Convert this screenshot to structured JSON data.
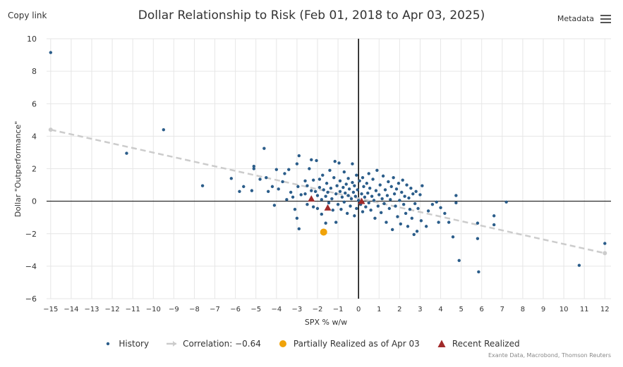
{
  "header": {
    "copy_link": "Copy link",
    "metadata": "Metadata",
    "menu_icon": "hamburger-menu-icon"
  },
  "source": "Exante Data, Macrobond, Thomson Reuters",
  "colors": {
    "history": "#2b5d8a",
    "correlation": "#cccccc",
    "partial": "#f0a30a",
    "recent": "#a12a2a",
    "grid": "#e6e6e6",
    "axis": "#000000"
  },
  "chart_data": {
    "type": "scatter",
    "title": "Dollar Relationship to Risk (Feb 01, 2018 to Apr 03, 2025)",
    "xlabel": "SPX % w/w",
    "ylabel": "Dollar \"Outperformance\"",
    "xlim": [
      -15.2,
      12.3
    ],
    "ylim": [
      -6,
      10
    ],
    "xticks": [
      -15,
      -14,
      -13,
      -12,
      -11,
      -10,
      -9,
      -8,
      -7,
      -6,
      -5,
      -4,
      -3,
      -2,
      -1,
      0,
      1,
      2,
      3,
      4,
      5,
      6,
      7,
      8,
      9,
      10,
      11,
      12
    ],
    "yticks": [
      -6,
      -4,
      -2,
      0,
      2,
      4,
      6,
      8,
      10
    ],
    "grid": true,
    "legend_position": "bottom-center",
    "series": [
      {
        "name": "History",
        "type": "scatter",
        "points": [
          [
            -15.0,
            9.15
          ],
          [
            -9.5,
            4.4
          ],
          [
            -11.3,
            2.95
          ],
          [
            -7.6,
            0.95
          ],
          [
            -6.2,
            1.4
          ],
          [
            -5.8,
            0.6
          ],
          [
            -5.6,
            0.9
          ],
          [
            -5.2,
            0.65
          ],
          [
            -5.1,
            2.0
          ],
          [
            -5.1,
            2.15
          ],
          [
            -4.8,
            1.35
          ],
          [
            -4.6,
            3.25
          ],
          [
            -4.5,
            1.45
          ],
          [
            -4.4,
            0.6
          ],
          [
            -4.2,
            0.9
          ],
          [
            -4.1,
            -0.25
          ],
          [
            -4.0,
            1.95
          ],
          [
            -3.9,
            0.75
          ],
          [
            -3.7,
            1.2
          ],
          [
            -3.6,
            1.7
          ],
          [
            -3.5,
            0.1
          ],
          [
            -3.4,
            1.95
          ],
          [
            -3.3,
            0.55
          ],
          [
            -3.2,
            0.25
          ],
          [
            -3.1,
            -0.5
          ],
          [
            -3.0,
            2.3
          ],
          [
            -3.0,
            -1.05
          ],
          [
            -2.95,
            0.9
          ],
          [
            -2.9,
            2.8
          ],
          [
            -2.9,
            -1.7
          ],
          [
            -2.8,
            0.4
          ],
          [
            -2.6,
            0.45
          ],
          [
            -2.6,
            1.25
          ],
          [
            -2.5,
            -0.2
          ],
          [
            -2.5,
            0.95
          ],
          [
            -2.4,
            2.0
          ],
          [
            -2.3,
            2.55
          ],
          [
            -2.3,
            0.65
          ],
          [
            -2.2,
            -0.35
          ],
          [
            -2.2,
            1.3
          ],
          [
            -2.1,
            0.6
          ],
          [
            -2.05,
            2.5
          ],
          [
            -2.0,
            -0.45
          ],
          [
            -2.0,
            0.35
          ],
          [
            -1.9,
            1.35
          ],
          [
            -1.9,
            0.85
          ],
          [
            -1.8,
            0.1
          ],
          [
            -1.8,
            -0.8
          ],
          [
            -1.75,
            1.6
          ],
          [
            -1.7,
            0.7
          ],
          [
            -1.6,
            0.3
          ],
          [
            -1.6,
            -1.35
          ],
          [
            -1.55,
            1.1
          ],
          [
            -1.5,
            0.55
          ],
          [
            -1.45,
            -0.1
          ],
          [
            -1.4,
            1.9
          ],
          [
            -1.35,
            0.8
          ],
          [
            -1.3,
            0.15
          ],
          [
            -1.25,
            -0.55
          ],
          [
            -1.2,
            1.45
          ],
          [
            -1.15,
            2.45
          ],
          [
            -1.1,
            -1.3
          ],
          [
            -1.1,
            0.45
          ],
          [
            -1.05,
            0.95
          ],
          [
            -1.0,
            -0.2
          ],
          [
            -0.95,
            2.35
          ],
          [
            -0.9,
            0.6
          ],
          [
            -0.9,
            1.25
          ],
          [
            -0.85,
            -0.5
          ],
          [
            -0.8,
            0.25
          ],
          [
            -0.75,
            0.85
          ],
          [
            -0.7,
            1.8
          ],
          [
            -0.7,
            -0.05
          ],
          [
            -0.65,
            0.5
          ],
          [
            -0.6,
            1.05
          ],
          [
            -0.55,
            -0.75
          ],
          [
            -0.5,
            0.35
          ],
          [
            -0.5,
            1.4
          ],
          [
            -0.45,
            0.75
          ],
          [
            -0.4,
            -0.3
          ],
          [
            -0.35,
            0.15
          ],
          [
            -0.3,
            1.15
          ],
          [
            -0.3,
            2.3
          ],
          [
            -0.25,
            0.55
          ],
          [
            -0.2,
            -0.9
          ],
          [
            -0.2,
            0.95
          ],
          [
            -0.15,
            0.3
          ],
          [
            -0.1,
            1.6
          ],
          [
            -0.1,
            -0.45
          ],
          [
            -0.05,
            0.7
          ],
          [
            0.0,
            0.05
          ],
          [
            0.05,
            1.25
          ],
          [
            0.1,
            -0.2
          ],
          [
            0.15,
            0.45
          ],
          [
            0.2,
            1.45
          ],
          [
            0.2,
            -0.65
          ],
          [
            0.25,
            0.9
          ],
          [
            0.3,
            0.25
          ],
          [
            0.35,
            -0.35
          ],
          [
            0.4,
            1.1
          ],
          [
            0.45,
            0.5
          ],
          [
            0.5,
            -0.1
          ],
          [
            0.5,
            1.7
          ],
          [
            0.55,
            0.8
          ],
          [
            0.6,
            -0.55
          ],
          [
            0.65,
            0.3
          ],
          [
            0.7,
            1.35
          ],
          [
            0.75,
            0.05
          ],
          [
            0.8,
            -1.05
          ],
          [
            0.85,
            0.65
          ],
          [
            0.9,
            1.9
          ],
          [
            0.95,
            -0.3
          ],
          [
            1.0,
            0.4
          ],
          [
            1.05,
            1.0
          ],
          [
            1.1,
            -0.7
          ],
          [
            1.15,
            0.15
          ],
          [
            1.2,
            1.55
          ],
          [
            1.25,
            -0.15
          ],
          [
            1.3,
            0.7
          ],
          [
            1.35,
            -1.3
          ],
          [
            1.4,
            0.35
          ],
          [
            1.45,
            1.2
          ],
          [
            1.5,
            -0.45
          ],
          [
            1.55,
            0.1
          ],
          [
            1.6,
            0.9
          ],
          [
            1.65,
            -1.75
          ],
          [
            1.7,
            1.45
          ],
          [
            1.75,
            0.45
          ],
          [
            1.8,
            -0.3
          ],
          [
            1.85,
            0.75
          ],
          [
            1.9,
            -0.95
          ],
          [
            1.95,
            1.1
          ],
          [
            2.0,
            0.05
          ],
          [
            2.05,
            -1.4
          ],
          [
            2.1,
            0.55
          ],
          [
            2.15,
            1.3
          ],
          [
            2.2,
            -0.2
          ],
          [
            2.25,
            0.3
          ],
          [
            2.3,
            -0.75
          ],
          [
            2.35,
            1.0
          ],
          [
            2.4,
            -1.55
          ],
          [
            2.45,
            0.2
          ],
          [
            2.5,
            -0.5
          ],
          [
            2.55,
            0.8
          ],
          [
            2.6,
            -1.05
          ],
          [
            2.65,
            0.45
          ],
          [
            2.7,
            -2.05
          ],
          [
            2.75,
            -0.15
          ],
          [
            2.8,
            0.6
          ],
          [
            2.85,
            -1.85
          ],
          [
            2.9,
            -0.45
          ],
          [
            3.0,
            0.4
          ],
          [
            3.05,
            -1.2
          ],
          [
            3.1,
            0.95
          ],
          [
            3.3,
            -1.55
          ],
          [
            3.4,
            -0.6
          ],
          [
            3.6,
            -0.2
          ],
          [
            3.8,
            -0.05
          ],
          [
            3.9,
            -1.3
          ],
          [
            4.0,
            -0.4
          ],
          [
            4.2,
            -0.75
          ],
          [
            4.4,
            -1.3
          ],
          [
            4.6,
            -2.2
          ],
          [
            4.75,
            0.35
          ],
          [
            4.75,
            -0.1
          ],
          [
            4.9,
            -3.65
          ],
          [
            5.8,
            -1.35
          ],
          [
            5.85,
            -4.35
          ],
          [
            5.8,
            -2.3
          ],
          [
            6.6,
            -0.9
          ],
          [
            6.6,
            -1.45
          ],
          [
            7.2,
            -0.05
          ],
          [
            10.75,
            -3.95
          ],
          [
            12.0,
            -2.6
          ]
        ]
      },
      {
        "name": "Correlation: −0.64",
        "type": "line",
        "dashed": true,
        "x": [
          -15.0,
          12.0
        ],
        "y": [
          4.4,
          -3.2
        ]
      },
      {
        "name": "Partially Realized as of Apr 03",
        "type": "scatter",
        "points": [
          [
            -1.7,
            -1.9
          ]
        ]
      },
      {
        "name": "Recent Realized",
        "type": "scatter",
        "points": [
          [
            -2.3,
            0.15
          ],
          [
            -1.5,
            -0.4
          ],
          [
            0.15,
            0.0
          ]
        ]
      }
    ]
  }
}
